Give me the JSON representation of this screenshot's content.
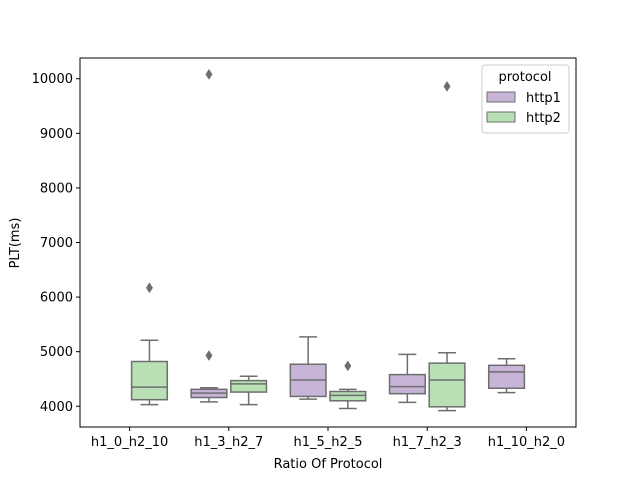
{
  "chart_data": {
    "type": "box",
    "xlabel": "Ratio Of Protocol",
    "ylabel": "PLT(ms)",
    "ylim": [
      3620,
      10380
    ],
    "yticks": [
      4000,
      5000,
      6000,
      7000,
      8000,
      9000,
      10000
    ],
    "categories": [
      "h1_0_h2_10",
      "h1_3_h2_7",
      "h1_5_h2_5",
      "h1_7_h2_3",
      "h1_10_h2_0"
    ],
    "legend": {
      "title": "protocol",
      "position": "top-right"
    },
    "grid": false,
    "series": [
      {
        "name": "http1",
        "color": "#c7b4d6",
        "boxes": [
          null,
          {
            "whisker_low": 4080,
            "q1": 4160,
            "median": 4240,
            "q3": 4310,
            "whisker_high": 4340,
            "outliers": [
              4930,
              10080
            ]
          },
          {
            "whisker_low": 4130,
            "q1": 4180,
            "median": 4480,
            "q3": 4770,
            "whisker_high": 5270,
            "outliers": []
          },
          {
            "whisker_low": 4070,
            "q1": 4230,
            "median": 4360,
            "q3": 4580,
            "whisker_high": 4950,
            "outliers": []
          },
          {
            "whisker_low": 4250,
            "q1": 4330,
            "median": 4630,
            "q3": 4750,
            "whisker_high": 4870,
            "outliers": []
          }
        ]
      },
      {
        "name": "http2",
        "color": "#b9e0b5",
        "boxes": [
          {
            "whisker_low": 4030,
            "q1": 4120,
            "median": 4350,
            "q3": 4820,
            "whisker_high": 5210,
            "outliers": [
              6170
            ]
          },
          {
            "whisker_low": 4030,
            "q1": 4260,
            "median": 4410,
            "q3": 4470,
            "whisker_high": 4550,
            "outliers": []
          },
          {
            "whisker_low": 3960,
            "q1": 4100,
            "median": 4200,
            "q3": 4270,
            "whisker_high": 4310,
            "outliers": [
              4740
            ]
          },
          {
            "whisker_low": 3920,
            "q1": 3990,
            "median": 4480,
            "q3": 4790,
            "whisker_high": 4980,
            "outliers": [
              9860
            ]
          },
          null
        ]
      }
    ],
    "style": {
      "line_color": "#6e6e6e",
      "outlier_color": "#6e6e6e"
    }
  }
}
